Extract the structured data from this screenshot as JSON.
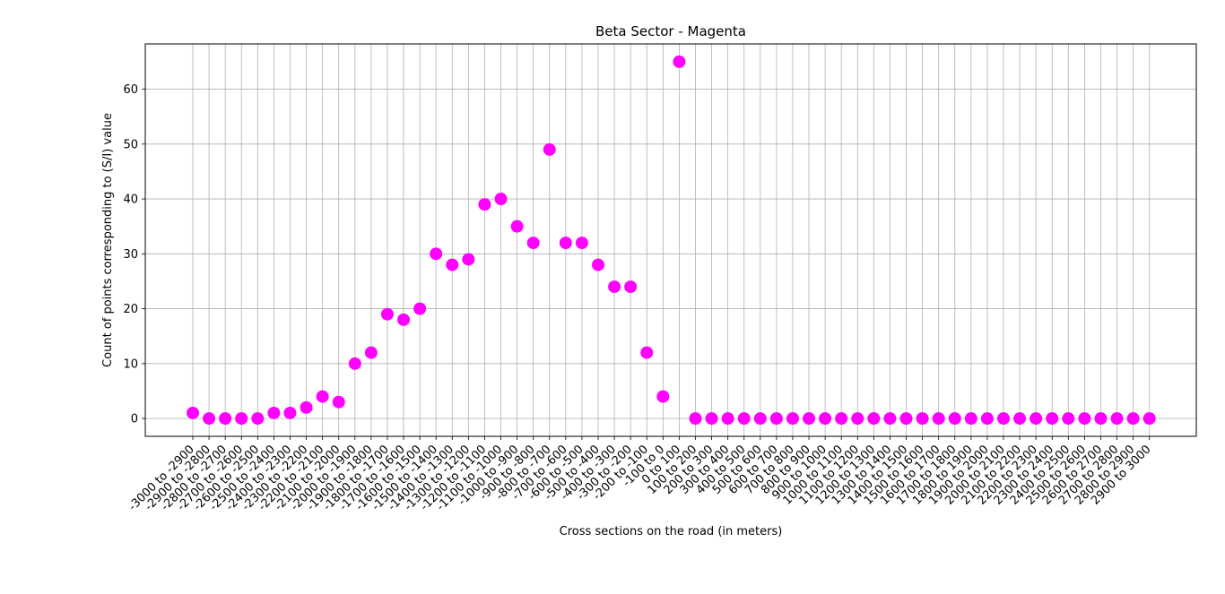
{
  "chart_data": {
    "type": "scatter",
    "title": "Beta Sector - Magenta",
    "xlabel": "Cross sections on the road (in meters)",
    "ylabel": "Count of points corresponding to (S/I) value",
    "ylim": [
      -3.25,
      68.25
    ],
    "yticks": [
      0,
      10,
      20,
      30,
      40,
      50,
      60
    ],
    "grid": true,
    "marker_color": "#ff00ff",
    "categories": [
      "-3000 to -2900",
      "-2900 to -2800",
      "-2800 to -2700",
      "-2700 to -2600",
      "-2600 to -2500",
      "-2500 to -2400",
      "-2400 to -2300",
      "-2300 to -2200",
      "-2200 to -2100",
      "-2100 to -2000",
      "-2000 to -1900",
      "-1900 to -1800",
      "-1800 to -1700",
      "-1700 to -1600",
      "-1600 to -1500",
      "-1500 to -1400",
      "-1400 to -1300",
      "-1300 to -1200",
      "-1200 to -1100",
      "-1100 to -1000",
      "-1000 to -900",
      "-900 to -800",
      "-800 to -700",
      "-700 to -600",
      "-600 to -500",
      "-500 to -400",
      "-400 to -300",
      "-300 to -200",
      "-200 to -100",
      "-100 to 0",
      "0 to 100",
      "100 to 200",
      "200 to 300",
      "300 to 400",
      "400 to 500",
      "500 to 600",
      "600 to 700",
      "700 to 800",
      "800 to 900",
      "900 to 1000",
      "1000 to 1100",
      "1100 to 1200",
      "1200 to 1300",
      "1300 to 1400",
      "1400 to 1500",
      "1500 to 1600",
      "1600 to 1700",
      "1700 to 1800",
      "1800 to 1900",
      "1900 to 2000",
      "2000 to 2100",
      "2100 to 2200",
      "2200 to 2300",
      "2300 to 2400",
      "2400 to 2500",
      "2500 to 2600",
      "2600 to 2700",
      "2700 to 2800",
      "2800 to 2900",
      "2900 to 3000"
    ],
    "values": [
      1,
      0,
      0,
      0,
      0,
      1,
      1,
      2,
      4,
      3,
      10,
      12,
      19,
      18,
      20,
      30,
      28,
      29,
      39,
      40,
      35,
      32,
      49,
      32,
      32,
      28,
      24,
      24,
      12,
      4,
      65,
      0,
      0,
      0,
      0,
      0,
      0,
      0,
      0,
      0,
      0,
      0,
      0,
      0,
      0,
      0,
      0,
      0,
      0,
      0,
      0,
      0,
      0,
      0,
      0,
      0,
      0,
      0,
      0,
      0
    ]
  }
}
